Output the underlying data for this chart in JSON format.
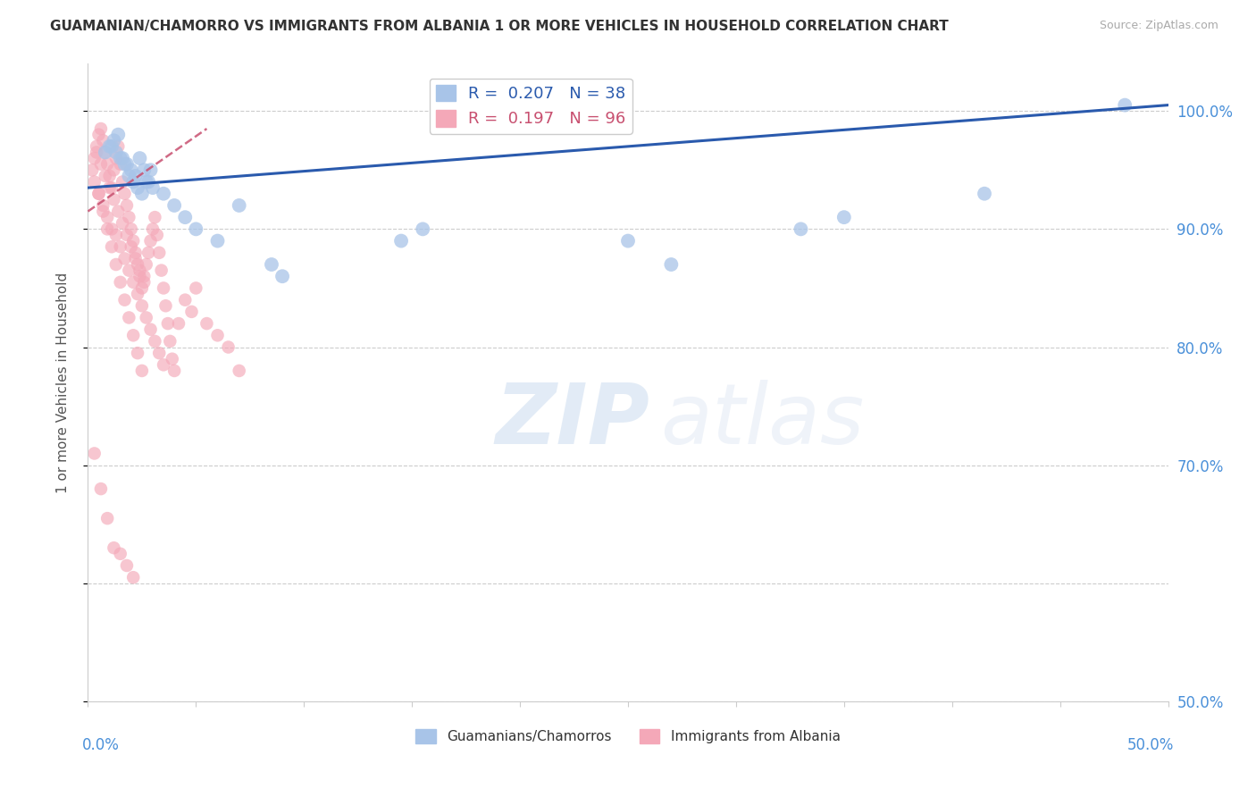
{
  "title": "GUAMANIAN/CHAMORRO VS IMMIGRANTS FROM ALBANIA 1 OR MORE VEHICLES IN HOUSEHOLD CORRELATION CHART",
  "source": "Source: ZipAtlas.com",
  "ylabel": "1 or more Vehicles in Household",
  "r_blue": 0.207,
  "n_blue": 38,
  "r_pink": 0.197,
  "n_pink": 96,
  "xlim": [
    0.0,
    50.0
  ],
  "ylim": [
    50.0,
    104.0
  ],
  "yticks": [
    50.0,
    60.0,
    70.0,
    80.0,
    90.0,
    100.0
  ],
  "ytick_labels": [
    "50.0%",
    "",
    "70.0%",
    "80.0%",
    "90.0%",
    "100.0%"
  ],
  "blue_color": "#a8c4e8",
  "pink_color": "#f4a8b8",
  "blue_line_color": "#2a5aad",
  "pink_line_color": "#c85070",
  "watermark_zip": "ZIP",
  "watermark_atlas": "atlas",
  "legend_label_blue": "Guamanians/Chamorros",
  "legend_label_pink": "Immigrants from Albania",
  "blue_scatter_x": [
    0.8,
    1.0,
    1.2,
    1.4,
    1.6,
    1.8,
    2.0,
    2.2,
    2.4,
    2.6,
    2.8,
    3.0,
    3.5,
    4.0,
    4.5,
    5.0,
    6.0,
    7.0,
    8.5,
    9.0,
    14.5,
    15.5,
    25.0,
    27.0,
    33.0,
    35.0,
    41.5,
    48.0,
    1.1,
    1.3,
    1.5,
    1.7,
    1.9,
    2.1,
    2.3,
    2.5,
    2.7,
    2.9
  ],
  "blue_scatter_y": [
    96.5,
    97.0,
    97.5,
    98.0,
    96.0,
    95.5,
    95.0,
    94.5,
    96.0,
    95.0,
    94.0,
    93.5,
    93.0,
    92.0,
    91.0,
    90.0,
    89.0,
    92.0,
    87.0,
    86.0,
    89.0,
    90.0,
    89.0,
    87.0,
    90.0,
    91.0,
    93.0,
    100.5,
    97.0,
    96.5,
    96.0,
    95.5,
    94.5,
    94.0,
    93.5,
    93.0,
    94.0,
    95.0
  ],
  "pink_scatter_x": [
    0.2,
    0.3,
    0.4,
    0.5,
    0.6,
    0.7,
    0.8,
    0.9,
    1.0,
    1.1,
    1.2,
    1.3,
    1.4,
    1.5,
    1.6,
    1.7,
    1.8,
    1.9,
    2.0,
    2.1,
    2.2,
    2.3,
    2.4,
    2.5,
    2.6,
    2.7,
    2.8,
    2.9,
    3.0,
    3.1,
    3.2,
    3.3,
    3.4,
    3.5,
    3.6,
    3.7,
    3.8,
    3.9,
    4.0,
    4.2,
    4.5,
    4.8,
    5.0,
    5.5,
    6.0,
    6.5,
    7.0,
    0.3,
    0.5,
    0.7,
    0.9,
    1.1,
    1.3,
    1.5,
    1.7,
    1.9,
    2.1,
    2.3,
    2.5,
    2.7,
    2.9,
    3.1,
    3.3,
    3.5,
    0.4,
    0.6,
    0.8,
    1.0,
    1.2,
    1.4,
    1.6,
    1.8,
    2.0,
    2.2,
    2.4,
    2.6,
    0.5,
    0.7,
    0.9,
    1.1,
    1.3,
    1.5,
    1.7,
    1.9,
    2.1,
    2.3,
    2.5,
    0.3,
    0.6,
    0.9,
    1.2,
    1.5,
    1.8,
    2.1
  ],
  "pink_scatter_y": [
    95.0,
    96.0,
    97.0,
    98.0,
    98.5,
    97.5,
    96.5,
    95.5,
    94.5,
    93.5,
    95.0,
    96.0,
    97.0,
    95.5,
    94.0,
    93.0,
    92.0,
    91.0,
    90.0,
    89.0,
    88.0,
    87.0,
    86.0,
    85.0,
    86.0,
    87.0,
    88.0,
    89.0,
    90.0,
    91.0,
    89.5,
    88.0,
    86.5,
    85.0,
    83.5,
    82.0,
    80.5,
    79.0,
    78.0,
    82.0,
    84.0,
    83.0,
    85.0,
    82.0,
    81.0,
    80.0,
    78.0,
    94.0,
    93.0,
    92.0,
    91.0,
    90.0,
    89.5,
    88.5,
    87.5,
    86.5,
    85.5,
    84.5,
    83.5,
    82.5,
    81.5,
    80.5,
    79.5,
    78.5,
    96.5,
    95.5,
    94.5,
    93.5,
    92.5,
    91.5,
    90.5,
    89.5,
    88.5,
    87.5,
    86.5,
    85.5,
    93.0,
    91.5,
    90.0,
    88.5,
    87.0,
    85.5,
    84.0,
    82.5,
    81.0,
    79.5,
    78.0,
    71.0,
    68.0,
    65.5,
    63.0,
    62.5,
    61.5,
    60.5
  ]
}
